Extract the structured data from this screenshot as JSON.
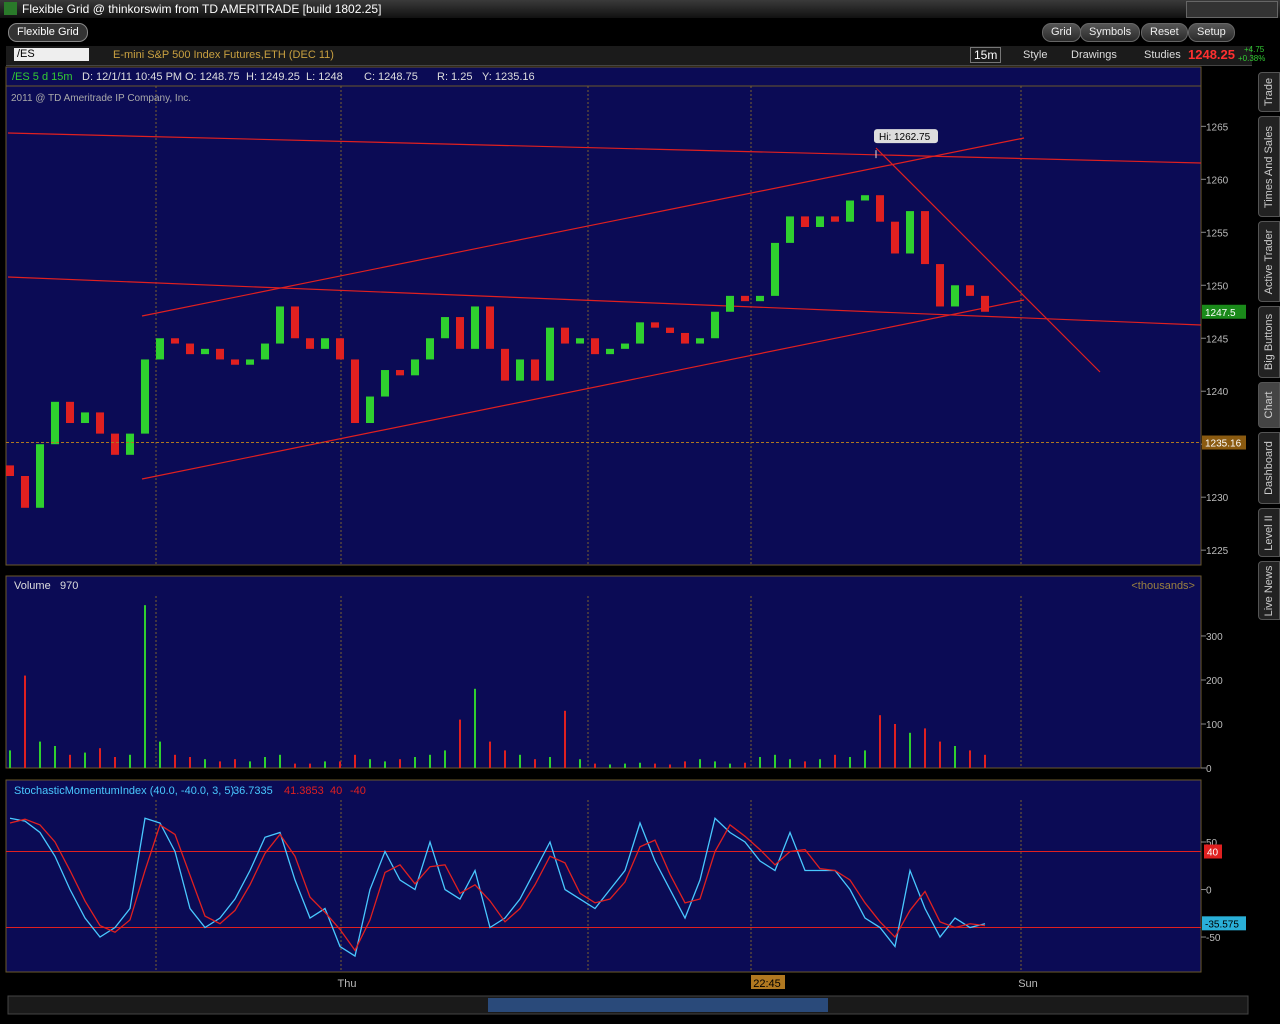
{
  "window_title": "Flexible Grid @ thinkorswim from TD AMERITRADE [build 1802.25]",
  "tab": "Flexible Grid",
  "toolbar": [
    "Grid",
    "Symbols",
    "Reset",
    "Setup"
  ],
  "chart_header": {
    "symbol": "/ES",
    "description": "E-mini S&P 500 Index Futures,ETH (DEC 11)",
    "aggregation": "15m",
    "buttons": [
      "Style",
      "Drawings",
      "Studies"
    ],
    "last": "1248.25",
    "change": "+4.75",
    "change_pct": "+0.38%"
  },
  "info": [
    "/ES 5 d 15m",
    "D: 12/1/11 10:45 PM",
    "O: 1248.75",
    "H: 1249.25",
    "L: 1248",
    "C: 1248.75",
    "R: 1.25",
    "Y: 1235.16"
  ],
  "copyright": "2011 @ TD Ameritrade IP Company, Inc.",
  "price": {
    "ylim": [
      1223.6,
      1270.6
    ],
    "yticks": [
      1225,
      1230,
      1235,
      1240,
      1245,
      1250,
      1255,
      1260,
      1265
    ],
    "first_open": 1233,
    "closes": [
      1232,
      1229,
      1235,
      1239,
      1237,
      1238,
      1236,
      1234,
      1236,
      1243,
      1245,
      1244.5,
      1243.5,
      1244,
      1243,
      1242.5,
      1243,
      1244.5,
      1248,
      1245,
      1244,
      1245,
      1243,
      1237,
      1239.5,
      1242,
      1241.5,
      1243,
      1245,
      1247,
      1244,
      1248,
      1244,
      1241,
      1243,
      1241,
      1246,
      1244.5,
      1245,
      1243.5,
      1244,
      1244.5,
      1246.5,
      1246,
      1245.5,
      1244.5,
      1245,
      1247.5,
      1249,
      1248.5,
      1249,
      1254,
      1256.5,
      1255.5,
      1256.5,
      1256,
      1258,
      1258.5,
      1256,
      1253,
      1257,
      1252,
      1248,
      1250,
      1249,
      1247.5
    ],
    "high_label": {
      "value": 1262.75,
      "label": "Hi: 1262.75"
    },
    "last_marker": 1247.5,
    "prev_close_marker": 1235.16
  },
  "volume": {
    "title": "Volume",
    "current": "970",
    "units": "<thousands>",
    "ylim": [
      0,
      434
    ],
    "yticks": [
      0,
      100,
      200,
      300
    ],
    "values": [
      40,
      210,
      60,
      50,
      30,
      35,
      45,
      25,
      30,
      370,
      60,
      30,
      25,
      20,
      15,
      20,
      15,
      25,
      30,
      10,
      10,
      15,
      15,
      30,
      20,
      15,
      20,
      25,
      30,
      40,
      110,
      180,
      60,
      40,
      30,
      20,
      25,
      130,
      20,
      10,
      8,
      10,
      12,
      10,
      8,
      15,
      20,
      15,
      10,
      12,
      25,
      30,
      20,
      15,
      20,
      30,
      25,
      40,
      120,
      100,
      80,
      90,
      60,
      50,
      40,
      30
    ]
  },
  "smi": {
    "title": "StochasticMomentumIndex (40.0, -40.0, 3, 5)",
    "readouts": [
      "36.7335",
      "41.3853",
      "40",
      "-40"
    ],
    "ylim": [
      -86.8,
      94.2
    ],
    "yticks": [
      -50,
      0,
      50
    ],
    "levels": [
      40,
      -40
    ],
    "level_marker": 40,
    "last_marker": -35.575,
    "series": [
      {
        "name": "SMI",
        "color": "#49c8ff",
        "values": [
          75,
          72,
          60,
          35,
          0,
          -30,
          -50,
          -40,
          -20,
          75,
          70,
          40,
          -20,
          -40,
          -30,
          -10,
          20,
          55,
          60,
          10,
          -30,
          -20,
          -60,
          -70,
          0,
          40,
          10,
          0,
          50,
          0,
          -10,
          20,
          -40,
          -30,
          -10,
          20,
          50,
          0,
          -10,
          -20,
          0,
          20,
          70,
          30,
          0,
          -30,
          10,
          75,
          60,
          50,
          30,
          20,
          60,
          20,
          20,
          20,
          0,
          -30,
          -40,
          -60,
          20,
          -20,
          -50,
          -30,
          -40,
          -36
        ]
      },
      {
        "name": "AvgSMI",
        "color": "#e02020",
        "values": [
          70,
          74,
          68,
          50,
          20,
          -12,
          -38,
          -45,
          -32,
          20,
          68,
          58,
          15,
          -28,
          -36,
          -22,
          5,
          38,
          58,
          35,
          -8,
          -24,
          -42,
          -64,
          -32,
          18,
          26,
          6,
          24,
          26,
          -4,
          5,
          -12,
          -34,
          -20,
          5,
          35,
          28,
          -4,
          -14,
          -10,
          8,
          45,
          52,
          16,
          -14,
          -10,
          40,
          68,
          56,
          42,
          26,
          40,
          42,
          22,
          20,
          10,
          -14,
          -34,
          -50,
          -22,
          -2,
          -34,
          -40,
          -36,
          -38
        ]
      }
    ]
  },
  "x_labels": [
    "Thu",
    "22:45",
    "Sun"
  ],
  "sidebar": [
    "Trade",
    "Times And Sales",
    "Active Trader",
    "Big Buttons",
    "Chart",
    "Dashboard",
    "Level II",
    "Live News"
  ]
}
